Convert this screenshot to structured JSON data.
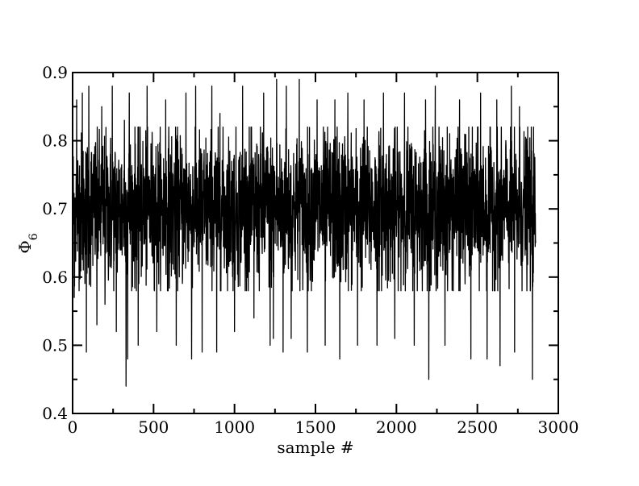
{
  "chart_data": {
    "type": "line",
    "title": "",
    "xlabel": "sample #",
    "ylabel_main": "Φ",
    "ylabel_sub": "6",
    "xlim": [
      0,
      3000
    ],
    "ylim": [
      0.4,
      0.9
    ],
    "xticks": [
      0,
      500,
      1000,
      1500,
      2000,
      2500,
      3000
    ],
    "xtick_labels": [
      "0",
      "500",
      "1000",
      "1500",
      "2000",
      "2500",
      "3000"
    ],
    "yticks": [
      0.4,
      0.5,
      0.6,
      0.7,
      0.8,
      0.9
    ],
    "ytick_labels": [
      "0.4",
      "0.5",
      "0.6",
      "0.7",
      "0.8",
      "0.9"
    ],
    "grid": false,
    "legend": "none",
    "series": [
      {
        "color": "#000000",
        "n_samples": 2860,
        "mean": 0.7,
        "typical_min": 0.6,
        "typical_max": 0.8,
        "x": [
          0,
          10,
          25,
          60,
          85,
          100,
          150,
          180,
          200,
          245,
          270,
          320,
          330,
          340,
          350,
          405,
          460,
          520,
          575,
          640,
          700,
          735,
          760,
          800,
          860,
          890,
          910,
          1000,
          1050,
          1120,
          1180,
          1220,
          1240,
          1260,
          1300,
          1320,
          1350,
          1400,
          1450,
          1510,
          1560,
          1620,
          1650,
          1700,
          1760,
          1800,
          1880,
          1920,
          1990,
          2050,
          2110,
          2180,
          2200,
          2240,
          2300,
          2390,
          2460,
          2520,
          2560,
          2620,
          2640,
          2710,
          2730,
          2760,
          2840,
          2860
        ],
        "y": [
          0.87,
          0.57,
          0.86,
          0.87,
          0.49,
          0.88,
          0.53,
          0.85,
          0.56,
          0.88,
          0.52,
          0.83,
          0.44,
          0.48,
          0.87,
          0.5,
          0.88,
          0.52,
          0.86,
          0.5,
          0.87,
          0.48,
          0.88,
          0.49,
          0.88,
          0.49,
          0.84,
          0.52,
          0.88,
          0.54,
          0.87,
          0.5,
          0.51,
          0.89,
          0.49,
          0.88,
          0.51,
          0.89,
          0.49,
          0.86,
          0.5,
          0.86,
          0.48,
          0.87,
          0.5,
          0.86,
          0.5,
          0.87,
          0.51,
          0.87,
          0.5,
          0.86,
          0.45,
          0.88,
          0.5,
          0.86,
          0.48,
          0.87,
          0.48,
          0.86,
          0.47,
          0.88,
          0.49,
          0.85,
          0.45,
          0.65
        ]
      }
    ]
  }
}
